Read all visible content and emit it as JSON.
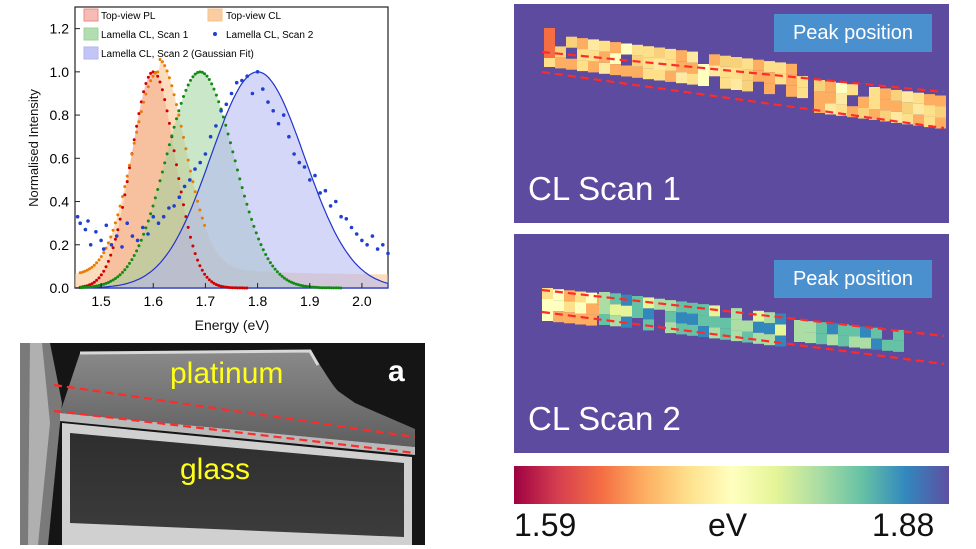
{
  "chart_data": {
    "type": "line",
    "xlabel": "Energy (eV)",
    "ylabel": "Normalised Intensity",
    "xlim": [
      1.45,
      2.05
    ],
    "ylim": [
      0,
      1.3
    ],
    "xticks": [
      "1.5",
      "1.6",
      "1.7",
      "1.8",
      "1.9",
      "2.0"
    ],
    "yticks": [
      "0.0",
      "0.2",
      "0.4",
      "0.6",
      "0.8",
      "1.0",
      "1.2"
    ],
    "legend_position": "top",
    "series": [
      {
        "name": "Top-view PL",
        "style": "filled-area",
        "color": "#ee8d84",
        "center": 1.6,
        "sigma": 0.042,
        "peak": 1.0,
        "tail": 0.0
      },
      {
        "name": "Top-view CL",
        "style": "filled-area",
        "color": "#f7c189",
        "center": 1.61,
        "sigma": 0.05,
        "peak": 1.0,
        "tail": 0.06
      },
      {
        "name": "Lamella CL, Scan 1",
        "style": "filled-area",
        "color": "#9ed49e",
        "center": 1.69,
        "sigma": 0.065,
        "peak": 1.0,
        "tail": 0.0
      },
      {
        "name": "Lamella CL, Scan 2",
        "style": "dots",
        "color": "#1f3fd1"
      },
      {
        "name": "Lamella CL, Scan 2 (Gaussian Fit)",
        "style": "filled-area",
        "color": "#b3b6f2",
        "center": 1.8,
        "sigma": 0.09,
        "peak": 1.0,
        "tail": 0.0
      }
    ],
    "dot_series": [
      {
        "name": "Top-view PL markers",
        "color": "#d10000",
        "center": 1.6,
        "sigma": 0.042,
        "peak": 1.0,
        "tail": 0.0,
        "x_from": 1.46,
        "x_to": 1.78
      },
      {
        "name": "Top-view CL markers",
        "color": "#e87b00",
        "center": 1.61,
        "sigma": 0.05,
        "peak": 1.0,
        "tail": 0.06,
        "x_from": 1.46,
        "x_to": 1.7
      },
      {
        "name": "Lamella Scan 1 markers",
        "color": "#138a13",
        "center": 1.69,
        "sigma": 0.065,
        "peak": 1.0,
        "tail": 0.0,
        "x_from": 1.46,
        "x_to": 1.96
      }
    ],
    "scan2_points": [
      [
        1.455,
        0.33
      ],
      [
        1.46,
        0.3
      ],
      [
        1.47,
        0.27
      ],
      [
        1.475,
        0.31
      ],
      [
        1.48,
        0.2
      ],
      [
        1.49,
        0.26
      ],
      [
        1.5,
        0.22
      ],
      [
        1.505,
        0.18
      ],
      [
        1.51,
        0.29
      ],
      [
        1.52,
        0.2
      ],
      [
        1.53,
        0.24
      ],
      [
        1.54,
        0.19
      ],
      [
        1.55,
        0.3
      ],
      [
        1.56,
        0.24
      ],
      [
        1.57,
        0.22
      ],
      [
        1.58,
        0.28
      ],
      [
        1.59,
        0.25
      ],
      [
        1.6,
        0.33
      ],
      [
        1.61,
        0.3
      ],
      [
        1.62,
        0.33
      ],
      [
        1.63,
        0.37
      ],
      [
        1.64,
        0.38
      ],
      [
        1.65,
        0.42
      ],
      [
        1.66,
        0.47
      ],
      [
        1.67,
        0.5
      ],
      [
        1.68,
        0.55
      ],
      [
        1.69,
        0.58
      ],
      [
        1.7,
        0.62
      ],
      [
        1.71,
        0.7
      ],
      [
        1.72,
        0.75
      ],
      [
        1.73,
        0.82
      ],
      [
        1.74,
        0.85
      ],
      [
        1.75,
        0.9
      ],
      [
        1.76,
        0.95
      ],
      [
        1.77,
        0.96
      ],
      [
        1.78,
        0.98
      ],
      [
        1.79,
        0.9
      ],
      [
        1.8,
        1.0
      ],
      [
        1.81,
        0.92
      ],
      [
        1.82,
        0.86
      ],
      [
        1.83,
        0.82
      ],
      [
        1.84,
        0.76
      ],
      [
        1.85,
        0.8
      ],
      [
        1.86,
        0.7
      ],
      [
        1.87,
        0.62
      ],
      [
        1.88,
        0.58
      ],
      [
        1.89,
        0.56
      ],
      [
        1.9,
        0.5
      ],
      [
        1.91,
        0.52
      ],
      [
        1.92,
        0.44
      ],
      [
        1.93,
        0.45
      ],
      [
        1.94,
        0.38
      ],
      [
        1.95,
        0.4
      ],
      [
        1.96,
        0.33
      ],
      [
        1.97,
        0.32
      ],
      [
        1.98,
        0.28
      ],
      [
        1.99,
        0.25
      ],
      [
        2.0,
        0.22
      ],
      [
        2.01,
        0.2
      ],
      [
        2.02,
        0.24
      ],
      [
        2.03,
        0.18
      ],
      [
        2.04,
        0.2
      ],
      [
        2.05,
        0.16
      ]
    ]
  },
  "sem": {
    "panel_letter": "a",
    "label_platinum": "platinum",
    "label_glass": "glass"
  },
  "maps": {
    "scan1": {
      "badge": "Peak position",
      "title": "CL Scan 1"
    },
    "scan2": {
      "badge": "Peak position",
      "title": "CL Scan 2"
    }
  },
  "colorbar": {
    "min_label": "1.59",
    "unit_label": "eV",
    "max_label": "1.88",
    "colors": [
      "#9e0142",
      "#d53e4f",
      "#f46d43",
      "#fdae61",
      "#fee08b",
      "#ffffbf",
      "#e6f598",
      "#abdda4",
      "#66c2a5",
      "#3288bd",
      "#5e4fa2"
    ]
  }
}
